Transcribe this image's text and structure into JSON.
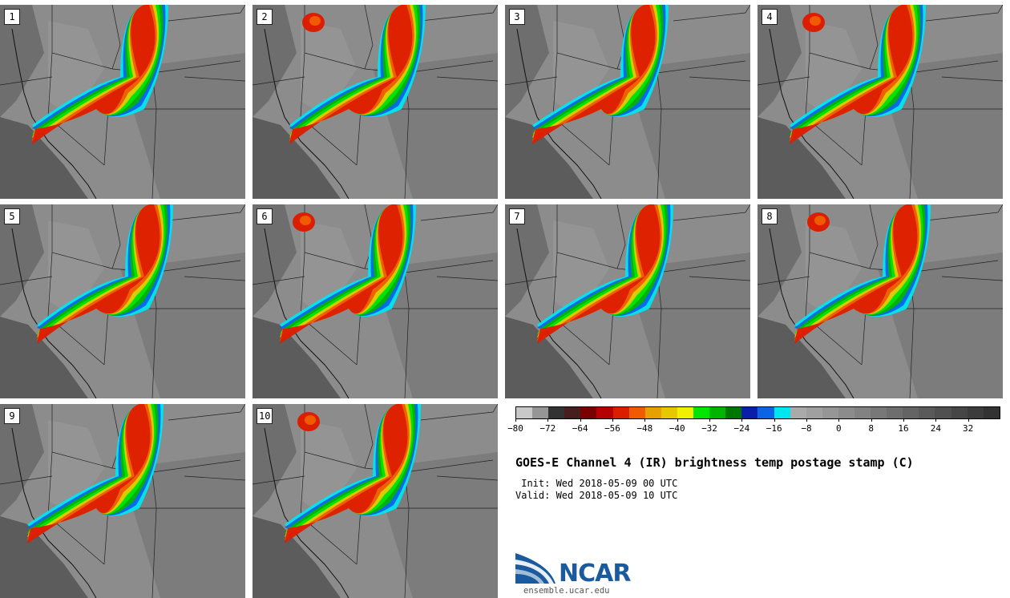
{
  "panels": [
    {
      "label": "1"
    },
    {
      "label": "2"
    },
    {
      "label": "3"
    },
    {
      "label": "4"
    },
    {
      "label": "5"
    },
    {
      "label": "6"
    },
    {
      "label": "7"
    },
    {
      "label": "8"
    },
    {
      "label": "9"
    },
    {
      "label": "10"
    }
  ],
  "colorbar": {
    "colors": [
      "#c8c8c8",
      "#969696",
      "#323232",
      "#461e1e",
      "#780000",
      "#b40000",
      "#dc1e00",
      "#f05a00",
      "#e6a000",
      "#e6c800",
      "#f0f000",
      "#00e600",
      "#00b400",
      "#007800",
      "#0a1eaa",
      "#0a64e6",
      "#00e6f0",
      "#aaaaaa",
      "#a0a0a0",
      "#969696",
      "#8c8c8c",
      "#828282",
      "#787878",
      "#6e6e6e",
      "#646464",
      "#5a5a5a",
      "#505050",
      "#464646",
      "#3c3c3c",
      "#323232"
    ],
    "ticks": [
      -80,
      -72,
      -64,
      -56,
      -48,
      -40,
      -32,
      -24,
      -16,
      -8,
      0,
      8,
      16,
      24,
      32
    ],
    "min": -80,
    "max": 40
  },
  "title": "GOES-E Channel 4 (IR) brightness temp postage stamp (C)",
  "init_line": " Init: Wed 2018-05-09 00 UTC",
  "valid_line": "Valid: Wed 2018-05-09 10 UTC",
  "logo": {
    "name": "NCAR",
    "url": "ensemble.ucar.edu",
    "color": "#1a5a9e"
  }
}
